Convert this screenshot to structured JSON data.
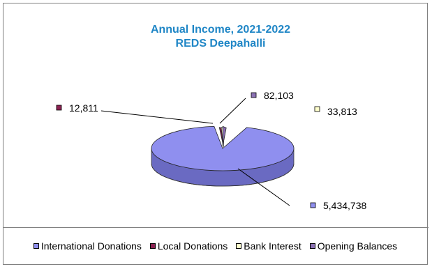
{
  "chart_data": {
    "type": "pie",
    "title": "Annual Income, 2021-2022",
    "subtitle": "REDS Deepahalli",
    "slices": [
      {
        "name": "International Donations",
        "value": 5434738,
        "label": "5,434,738",
        "color": "#8f8fef"
      },
      {
        "name": "Local Donations",
        "value": 12811,
        "label": "12,811",
        "color": "#8b2252"
      },
      {
        "name": "Bank Interest",
        "value": 33813,
        "label": "33,813",
        "color": "#ffffcc"
      },
      {
        "name": "Opening Balances",
        "value": 82103,
        "label": "82,103",
        "color": "#8b72b4"
      }
    ],
    "legend_position": "bottom",
    "grid": false
  },
  "colors": {
    "title": "#1f86c6",
    "border": "#808080"
  }
}
